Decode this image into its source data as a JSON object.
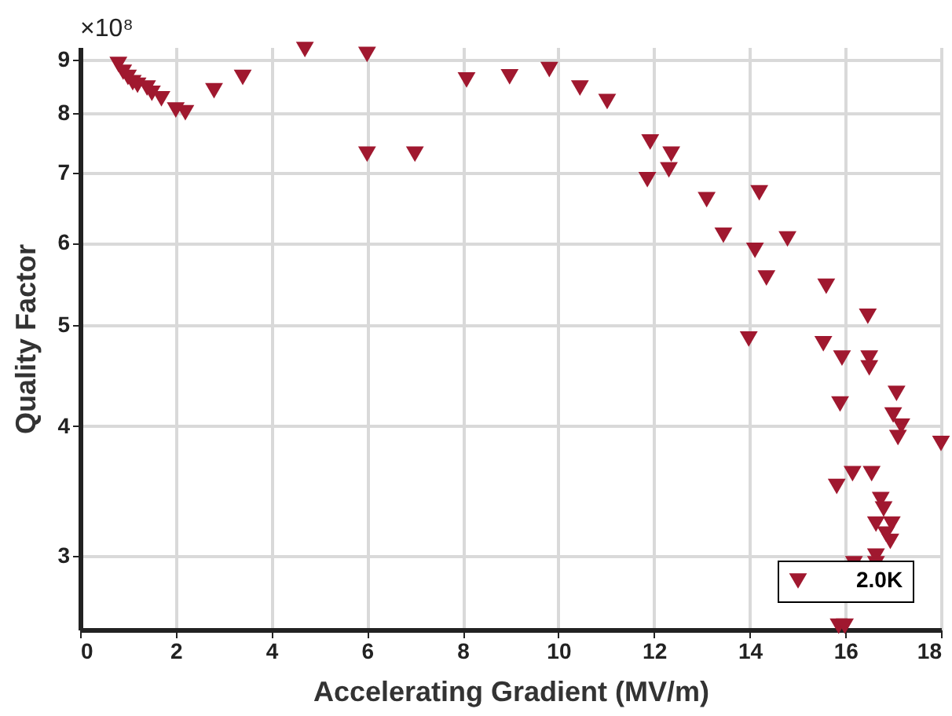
{
  "chart_data": {
    "type": "scatter",
    "xlabel": "Accelerating Gradient (MV/m)",
    "ylabel": "Quality Factor",
    "annotations": [
      "×10⁸"
    ],
    "x": [
      0.8,
      0.9,
      1.0,
      1.1,
      1.2,
      1.4,
      1.5,
      1.7,
      2.0,
      2.2,
      2.8,
      3.4,
      4.7,
      6.0,
      6.0,
      7.0,
      8.08,
      8.98,
      9.81,
      10.45,
      11.02,
      11.92,
      12.36,
      11.86,
      12.31,
      13.1,
      14.2,
      13.45,
      14.79,
      14.11,
      14.35,
      15.6,
      16.47,
      13.98,
      15.54,
      15.93,
      16.5,
      16.5,
      17.07,
      15.89,
      17.0,
      17.17,
      17.1,
      18.0,
      15.82,
      16.15,
      16.55,
      16.74,
      16.8,
      16.64,
      16.97,
      16.85,
      16.94,
      16.64,
      16.18,
      16.64,
      15.86,
      15.99
    ],
    "series": [
      {
        "name": "2.0K",
        "color": "#a0182f",
        "values": [
          8.9,
          8.75,
          8.65,
          8.55,
          8.5,
          8.45,
          8.35,
          8.25,
          8.05,
          8.0,
          8.4,
          8.65,
          9.2,
          9.1,
          7.3,
          7.3,
          8.6,
          8.66,
          8.8,
          8.45,
          8.2,
          7.5,
          7.3,
          6.9,
          7.05,
          6.6,
          6.7,
          6.1,
          6.05,
          5.9,
          5.55,
          5.45,
          5.1,
          4.85,
          4.8,
          4.65,
          4.65,
          4.55,
          4.3,
          4.2,
          4.1,
          4.0,
          3.9,
          3.85,
          3.5,
          3.6,
          3.6,
          3.4,
          3.33,
          3.22,
          3.22,
          3.15,
          3.1,
          3.0,
          2.95,
          2.95,
          2.57,
          2.57
        ]
      }
    ],
    "log": "y",
    "xlim": [
      0,
      18
    ],
    "xticks": [
      0,
      2,
      4,
      6,
      8,
      10,
      12,
      14,
      16,
      18
    ],
    "ylim": [
      2.55,
      9.25
    ],
    "yticks": [
      3,
      4,
      5,
      6,
      7,
      8,
      9
    ],
    "grid": true,
    "legend": "bottom right",
    "marker": "triangle"
  }
}
